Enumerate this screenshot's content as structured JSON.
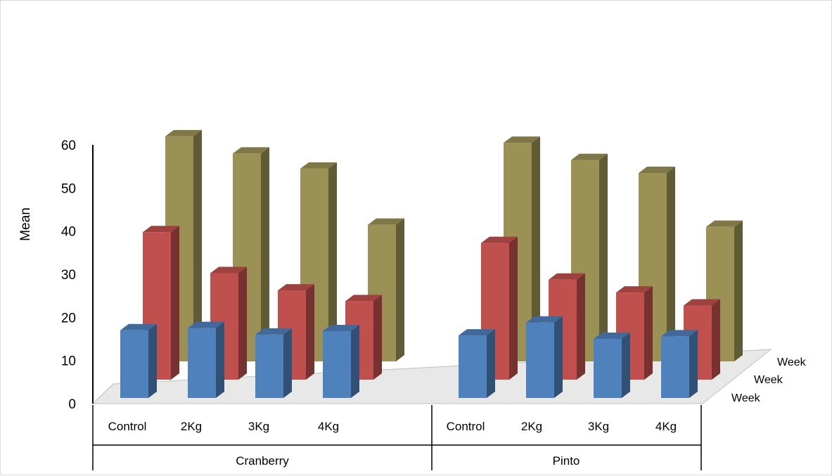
{
  "chart_data": {
    "type": "bar",
    "style": "3d-column",
    "title": "",
    "ylabel": "Mean",
    "xlabel": "",
    "ylim": [
      0,
      60
    ],
    "yticks": [
      0,
      10,
      20,
      30,
      40,
      50,
      60
    ],
    "groups": [
      {
        "label": "Cranberry",
        "categories": [
          "Control",
          "2Kg",
          "3Kg",
          "4Kg"
        ]
      },
      {
        "label": "Pinto",
        "categories": [
          "Control",
          "2Kg",
          "3Kg",
          "4Kg"
        ]
      }
    ],
    "series": [
      {
        "name": "Week",
        "color": "#4f81bd",
        "values": [
          17,
          17.5,
          16,
          16.8,
          15.8,
          18.8,
          15,
          15.6
        ]
      },
      {
        "name": "Week",
        "color": "#c0504d",
        "values": [
          35.5,
          26,
          22,
          19.5,
          33,
          24.5,
          21.5,
          18.5
        ]
      },
      {
        "name": "Week",
        "color": "#9b9155",
        "values": [
          53.5,
          49.5,
          46,
          33,
          52,
          48,
          45,
          32.5
        ]
      }
    ]
  }
}
